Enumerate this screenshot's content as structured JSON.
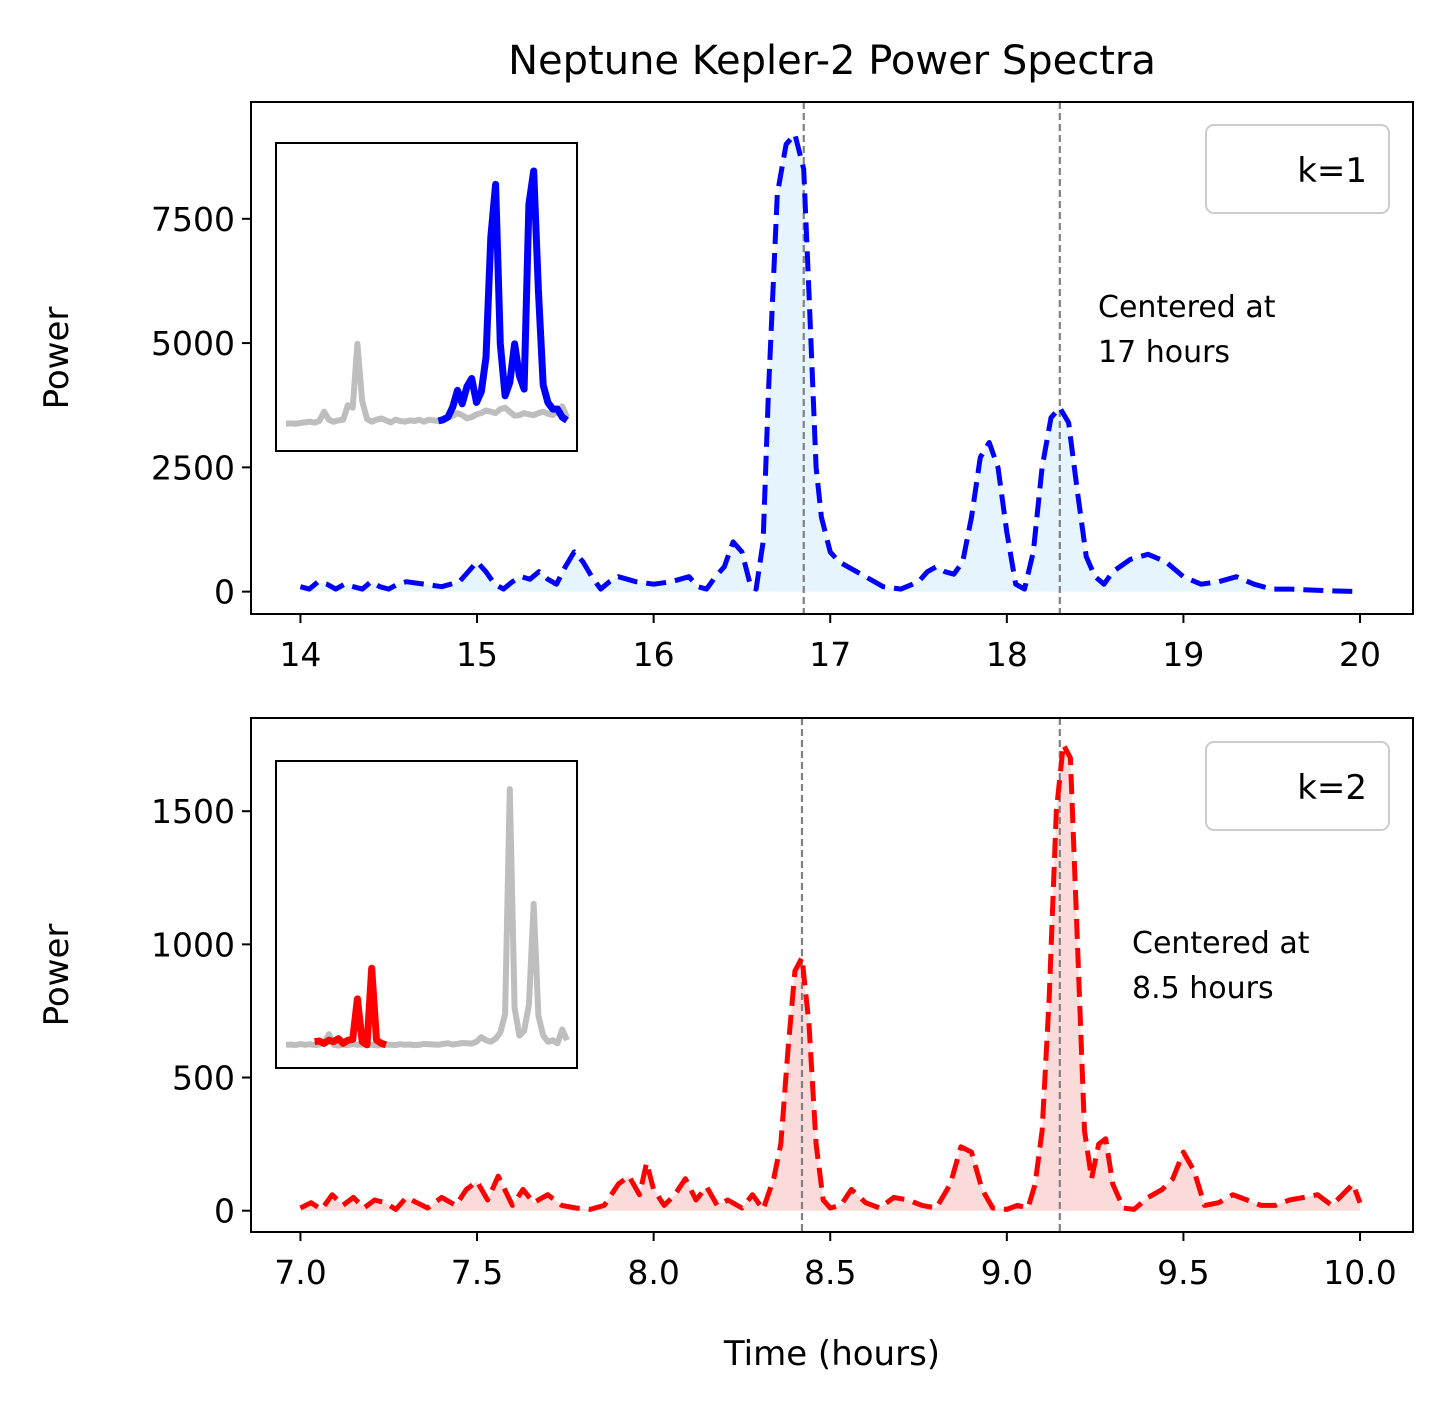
{
  "figure": {
    "title": "Neptune Kepler-2 Power Spectra",
    "xlabel": "Time (hours)"
  },
  "chart_data": [
    {
      "type": "line",
      "panel": "top",
      "ylabel": "Power",
      "xlim": [
        13.72,
        20.3
      ],
      "ylim": [
        -450,
        9850
      ],
      "xticks": [
        14,
        15,
        16,
        17,
        18,
        19,
        20
      ],
      "xtick_labels": [
        "14",
        "15",
        "16",
        "17",
        "18",
        "19",
        "20"
      ],
      "yticks": [
        0,
        2500,
        5000,
        7500
      ],
      "ytick_labels": [
        "0",
        "2500",
        "5000",
        "7500"
      ],
      "legend": {
        "label": "k=1",
        "position": "top-right"
      },
      "annotation": [
        "Centered at",
        "17 hours"
      ],
      "vlines": [
        16.85,
        18.3
      ],
      "color": "#0000ff",
      "fill_color": "#e6f4fd",
      "series": [
        {
          "x": [
            14.0,
            14.05,
            14.1,
            14.15,
            14.2,
            14.25,
            14.3,
            14.35,
            14.4,
            14.45,
            14.5,
            14.55,
            14.6,
            14.7,
            14.8,
            14.9,
            15.0,
            15.05,
            15.1,
            15.15,
            15.2,
            15.25,
            15.3,
            15.35,
            15.4,
            15.45,
            15.5,
            15.55,
            15.6,
            15.65,
            15.7,
            15.75,
            15.8,
            15.85,
            15.9,
            16.0,
            16.1,
            16.2,
            16.25,
            16.3,
            16.35,
            16.4,
            16.45,
            16.5,
            16.55,
            16.58,
            16.62,
            16.65,
            16.7,
            16.75,
            16.8,
            16.85,
            16.88,
            16.92,
            16.95,
            17.0,
            17.05,
            17.1,
            17.2,
            17.3,
            17.4,
            17.5,
            17.55,
            17.6,
            17.65,
            17.7,
            17.75,
            17.8,
            17.85,
            17.9,
            17.95,
            18.0,
            18.05,
            18.1,
            18.15,
            18.2,
            18.25,
            18.3,
            18.35,
            18.4,
            18.45,
            18.5,
            18.55,
            18.6,
            18.7,
            18.8,
            18.9,
            19.0,
            19.1,
            19.2,
            19.3,
            19.4,
            19.5,
            19.6,
            19.8,
            20.0
          ],
          "y": [
            100,
            50,
            200,
            150,
            50,
            150,
            100,
            50,
            200,
            100,
            50,
            150,
            200,
            150,
            100,
            200,
            600,
            400,
            150,
            50,
            200,
            300,
            250,
            400,
            250,
            150,
            500,
            800,
            600,
            300,
            50,
            200,
            300,
            250,
            200,
            150,
            200,
            300,
            100,
            50,
            300,
            500,
            1000,
            800,
            100,
            50,
            1000,
            4000,
            8000,
            9000,
            9200,
            8500,
            6000,
            2500,
            1500,
            800,
            600,
            500,
            300,
            100,
            50,
            200,
            400,
            500,
            400,
            350,
            600,
            1500,
            2700,
            3000,
            2500,
            1200,
            150,
            50,
            800,
            2500,
            3500,
            3700,
            3400,
            2000,
            700,
            300,
            150,
            400,
            650,
            750,
            600,
            300,
            150,
            200,
            300,
            150,
            50,
            50,
            20,
            0
          ]
        }
      ],
      "inset": {
        "grey_series": [
          200,
          205,
          198,
          210,
          220,
          230,
          215,
          240,
          380,
          260,
          230,
          250,
          260,
          480,
          440,
          1400,
          540,
          270,
          230,
          260,
          280,
          250,
          220,
          260,
          240,
          230,
          250,
          240,
          260,
          230,
          260,
          250,
          240,
          280,
          300,
          320,
          360,
          330,
          280,
          300,
          340,
          360,
          400,
          380,
          360,
          420,
          440,
          380,
          320,
          330,
          360,
          340,
          330,
          360,
          380,
          350,
          330,
          380,
          460,
          300
        ],
        "colored_series": [
          240,
          260,
          300,
          450,
          700,
          500,
          760,
          880,
          520,
          680,
          1200,
          3000,
          3800,
          1400,
          620,
          820,
          1400,
          920,
          720,
          3500,
          4000,
          2200,
          780,
          520,
          420,
          420,
          300,
          250
        ],
        "colored_start": 32
      }
    },
    {
      "type": "line",
      "panel": "bottom",
      "ylabel": "Power",
      "xlim": [
        6.86,
        10.15
      ],
      "ylim": [
        -80,
        1850
      ],
      "xticks": [
        7.0,
        7.5,
        8.0,
        8.5,
        9.0,
        9.5,
        10.0
      ],
      "xtick_labels": [
        "7.0",
        "7.5",
        "8.0",
        "8.5",
        "9.0",
        "9.5",
        "10.0"
      ],
      "yticks": [
        0,
        500,
        1000,
        1500
      ],
      "ytick_labels": [
        "0",
        "500",
        "1000",
        "1500"
      ],
      "legend": {
        "label": "k=2",
        "position": "top-right"
      },
      "annotation": [
        "Centered at",
        "8.5 hours"
      ],
      "vlines": [
        8.42,
        9.15
      ],
      "color": "#ff0000",
      "fill_color": "#fbdada",
      "series": [
        {
          "x": [
            7.0,
            7.03,
            7.06,
            7.09,
            7.12,
            7.15,
            7.18,
            7.21,
            7.24,
            7.27,
            7.3,
            7.33,
            7.36,
            7.4,
            7.44,
            7.47,
            7.5,
            7.53,
            7.56,
            7.6,
            7.63,
            7.66,
            7.7,
            7.74,
            7.78,
            7.82,
            7.86,
            7.9,
            7.93,
            7.96,
            7.98,
            8.0,
            8.03,
            8.06,
            8.09,
            8.12,
            8.15,
            8.18,
            8.21,
            8.25,
            8.28,
            8.31,
            8.34,
            8.36,
            8.38,
            8.4,
            8.42,
            8.44,
            8.46,
            8.48,
            8.5,
            8.53,
            8.56,
            8.6,
            8.64,
            8.68,
            8.72,
            8.76,
            8.8,
            8.84,
            8.87,
            8.9,
            8.93,
            8.96,
            9.0,
            9.03,
            9.06,
            9.08,
            9.1,
            9.12,
            9.14,
            9.16,
            9.18,
            9.2,
            9.22,
            9.24,
            9.26,
            9.28,
            9.3,
            9.33,
            9.36,
            9.4,
            9.44,
            9.47,
            9.5,
            9.53,
            9.56,
            9.6,
            9.64,
            9.68,
            9.72,
            9.76,
            9.8,
            9.84,
            9.88,
            9.92,
            9.95,
            9.98,
            10.0
          ],
          "y": [
            10,
            30,
            5,
            60,
            20,
            50,
            10,
            40,
            30,
            5,
            50,
            30,
            10,
            50,
            20,
            80,
            110,
            40,
            130,
            20,
            80,
            30,
            60,
            20,
            10,
            5,
            20,
            100,
            130,
            60,
            180,
            80,
            20,
            60,
            120,
            40,
            90,
            20,
            40,
            10,
            60,
            5,
            120,
            250,
            600,
            900,
            950,
            700,
            250,
            40,
            10,
            20,
            80,
            30,
            10,
            50,
            40,
            20,
            10,
            100,
            240,
            220,
            80,
            10,
            5,
            20,
            10,
            100,
            300,
            800,
            1500,
            1750,
            1700,
            1000,
            300,
            120,
            250,
            270,
            100,
            10,
            5,
            50,
            80,
            120,
            220,
            150,
            20,
            30,
            60,
            40,
            20,
            20,
            40,
            50,
            60,
            20,
            60,
            100,
            30
          ]
        }
      ],
      "inset": {
        "grey_series": [
          60,
          62,
          58,
          65,
          60,
          64,
          58,
          62,
          70,
          130,
          60,
          55,
          60,
          58,
          65,
          60,
          62,
          58,
          60,
          56,
          58,
          62,
          60,
          58,
          64,
          60,
          62,
          58,
          60,
          66,
          64,
          62,
          60,
          66,
          70,
          62,
          66,
          72,
          70,
          68,
          80,
          110,
          90,
          80,
          100,
          140,
          260,
          1730,
          300,
          120,
          150,
          320,
          980,
          250,
          120,
          80,
          90,
          70,
          160,
          90
        ],
        "colored_series": [
          80,
          85,
          70,
          90,
          80,
          100,
          70,
          90,
          95,
          360,
          80,
          60,
          560,
          90,
          70,
          60
        ],
        "colored_start": 6
      }
    }
  ]
}
